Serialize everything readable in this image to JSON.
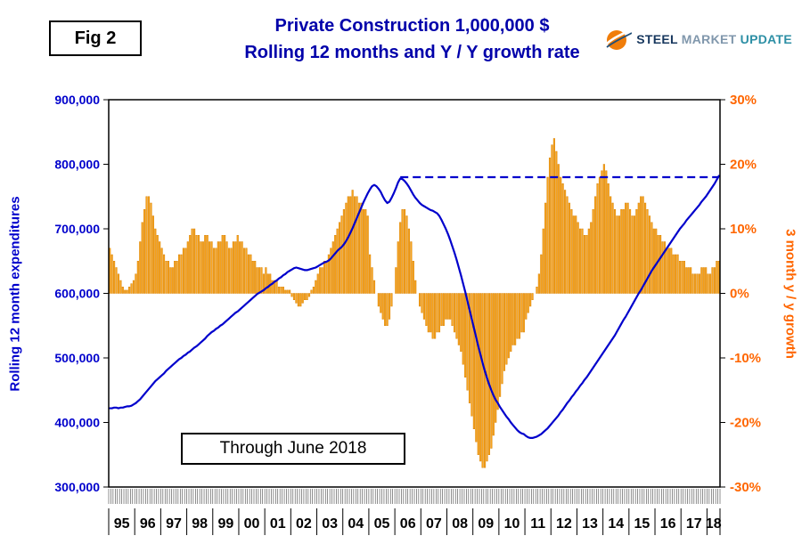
{
  "figure_label": "Fig 2",
  "header": {
    "title_line1": "Private Construction 1,000,000 $",
    "title_line2": "Rolling 12 months and Y / Y growth rate",
    "title_color": "#0000AA"
  },
  "logo": {
    "word1": "STEEL",
    "word2": "MARKET",
    "word3": "UPDATE",
    "icon": "orange-globe-swoosh-icon"
  },
  "annotation": "Through June 2018",
  "chart_data": {
    "type": "combo",
    "title": "Private Construction 1,000,000 $",
    "subtitle": "Rolling 12 months and Y / Y growth rate",
    "grid": "off",
    "x_years": [
      "95",
      "96",
      "97",
      "98",
      "99",
      "00",
      "01",
      "02",
      "03",
      "04",
      "05",
      "06",
      "07",
      "08",
      "09",
      "10",
      "11",
      "12",
      "13",
      "14",
      "15",
      "16",
      "17",
      "18"
    ],
    "left_axis": {
      "label": "Rolling 12 month expenditures",
      "min": 300000,
      "max": 900000,
      "tick_step": 100000,
      "tick_labels": [
        "300,000",
        "400,000",
        "500,000",
        "600,000",
        "700,000",
        "800,000",
        "900,000"
      ],
      "color": "#0000CC"
    },
    "right_axis": {
      "label": "3 month y / y growth",
      "min": -30,
      "max": 30,
      "tick_step": 10,
      "tick_labels": [
        "-30%",
        "-20%",
        "-10%",
        "0%",
        "10%",
        "20%",
        "30%"
      ],
      "color": "#FF6600"
    },
    "reference_line": {
      "style": "dashed",
      "color": "#0000CC",
      "value": 780000,
      "from_index": 134,
      "to_index": 281
    },
    "series": [
      {
        "name": "Rolling 12 month expenditures",
        "type": "line",
        "axis": "left",
        "color": "#0000CC",
        "values": [
          422000,
          422000,
          423000,
          423000,
          422000,
          423000,
          423000,
          424000,
          425000,
          425000,
          426000,
          428000,
          430000,
          433000,
          436000,
          440000,
          444000,
          448000,
          452000,
          456000,
          460000,
          464000,
          467000,
          470000,
          473000,
          476000,
          480000,
          483000,
          486000,
          489000,
          492000,
          495000,
          498000,
          500000,
          503000,
          505000,
          508000,
          510000,
          513000,
          516000,
          518000,
          521000,
          524000,
          527000,
          530000,
          534000,
          537000,
          540000,
          542000,
          545000,
          547000,
          550000,
          552000,
          555000,
          558000,
          561000,
          564000,
          567000,
          570000,
          572000,
          575000,
          578000,
          581000,
          584000,
          587000,
          590000,
          593000,
          596000,
          599000,
          601000,
          603000,
          605000,
          608000,
          610000,
          613000,
          615000,
          618000,
          620000,
          623000,
          625000,
          628000,
          630000,
          633000,
          635000,
          637000,
          639000,
          640000,
          639000,
          638000,
          637000,
          636000,
          636000,
          637000,
          638000,
          639000,
          640000,
          642000,
          644000,
          646000,
          648000,
          649000,
          651000,
          654000,
          658000,
          662000,
          666000,
          669000,
          672000,
          676000,
          681000,
          687000,
          694000,
          701000,
          709000,
          717000,
          725000,
          733000,
          741000,
          748000,
          755000,
          761000,
          766000,
          768000,
          766000,
          762000,
          757000,
          750000,
          744000,
          740000,
          742000,
          748000,
          755000,
          763000,
          772000,
          778000,
          777000,
          774000,
          770000,
          765000,
          759000,
          753000,
          748000,
          744000,
          740000,
          737000,
          735000,
          733000,
          731000,
          729000,
          728000,
          726000,
          724000,
          720000,
          714000,
          707000,
          700000,
          692000,
          683000,
          673000,
          663000,
          652000,
          640000,
          628000,
          615000,
          602000,
          588000,
          574000,
          560000,
          546000,
          532000,
          518000,
          505000,
          492000,
          480000,
          469000,
          459000,
          450000,
          442000,
          435000,
          430000,
          424000,
          419000,
          414000,
          409000,
          405000,
          400000,
          396000,
          392000,
          388000,
          385000,
          383000,
          382000,
          379000,
          377000,
          376000,
          376000,
          377000,
          378000,
          380000,
          382000,
          385000,
          388000,
          391000,
          395000,
          399000,
          403000,
          407000,
          411000,
          416000,
          420000,
          425000,
          430000,
          434000,
          439000,
          443000,
          448000,
          452000,
          457000,
          461000,
          466000,
          470000,
          475000,
          480000,
          485000,
          490000,
          495000,
          500000,
          505000,
          510000,
          515000,
          520000,
          525000,
          530000,
          535000,
          541000,
          547000,
          553000,
          559000,
          564000,
          570000,
          576000,
          582000,
          588000,
          594000,
          600000,
          605000,
          611000,
          617000,
          623000,
          629000,
          635000,
          640000,
          645000,
          650000,
          655000,
          660000,
          665000,
          670000,
          675000,
          680000,
          685000,
          690000,
          695000,
          700000,
          704000,
          708000,
          713000,
          717000,
          721000,
          725000,
          729000,
          733000,
          737000,
          742000,
          746000,
          750000,
          755000,
          760000,
          765000,
          770000,
          776000,
          782000
        ]
      },
      {
        "name": "3 month y / y growth",
        "type": "bar",
        "axis": "right",
        "color": "#F9A51D",
        "stroke": "#D98408",
        "values": [
          7,
          6,
          5,
          4,
          3,
          2,
          1,
          0.5,
          0.5,
          1,
          1.5,
          2,
          3,
          5,
          8,
          11,
          13,
          15,
          15,
          14,
          12,
          10,
          9,
          8,
          7,
          6,
          5,
          5,
          4,
          4,
          5,
          5,
          6,
          6,
          7,
          7,
          8,
          9,
          10,
          10,
          9,
          9,
          8,
          8,
          9,
          9,
          8,
          8,
          7,
          7,
          8,
          8,
          9,
          9,
          8,
          7,
          7,
          8,
          8,
          9,
          8,
          8,
          7,
          7,
          6,
          6,
          5,
          5,
          4,
          4,
          4,
          3,
          4,
          3,
          3,
          2,
          2,
          2,
          1,
          1,
          1,
          0.5,
          0.5,
          0.5,
          -0.5,
          -1,
          -1.5,
          -2,
          -2,
          -1.5,
          -1,
          -1,
          -0.5,
          0.5,
          1,
          2,
          3,
          4,
          4,
          5,
          5,
          6,
          7,
          8,
          9,
          10,
          11,
          12,
          13,
          14,
          15,
          15,
          16,
          15,
          15,
          14,
          14,
          13,
          13,
          12,
          6,
          4,
          2,
          0,
          -2,
          -3,
          -4,
          -5,
          -5,
          -4,
          -2,
          0,
          4,
          8,
          11,
          13,
          13,
          12,
          10,
          8,
          5,
          2,
          0,
          -2,
          -3,
          -4,
          -5,
          -6,
          -6,
          -7,
          -7,
          -6,
          -6,
          -5,
          -5,
          -4,
          -4,
          -4,
          -5,
          -6,
          -7,
          -8,
          -9,
          -11,
          -13,
          -15,
          -17,
          -19,
          -21,
          -23,
          -25,
          -26,
          -27,
          -27,
          -26,
          -25,
          -24,
          -22,
          -20,
          -18,
          -16,
          -14,
          -12,
          -11,
          -10,
          -9,
          -8,
          -8,
          -7,
          -7,
          -6,
          -6,
          -4,
          -3,
          -2,
          -1,
          0,
          1,
          3,
          6,
          10,
          14,
          18,
          21,
          23,
          24,
          22,
          20,
          18,
          17,
          16,
          15,
          14,
          13,
          12,
          12,
          11,
          10,
          10,
          9,
          9,
          10,
          11,
          13,
          15,
          17,
          18,
          19,
          20,
          19,
          17,
          15,
          14,
          13,
          12,
          12,
          13,
          13,
          14,
          14,
          13,
          12,
          12,
          13,
          14,
          15,
          15,
          14,
          13,
          12,
          11,
          10,
          10,
          9,
          9,
          8,
          8,
          7,
          7,
          7,
          6,
          6,
          6,
          5,
          5,
          5,
          4,
          4,
          4,
          3,
          3,
          3,
          3,
          4,
          4,
          4,
          3,
          3,
          4,
          4,
          5,
          5
        ]
      }
    ],
    "annotations": [
      "Through June 2018"
    ]
  }
}
